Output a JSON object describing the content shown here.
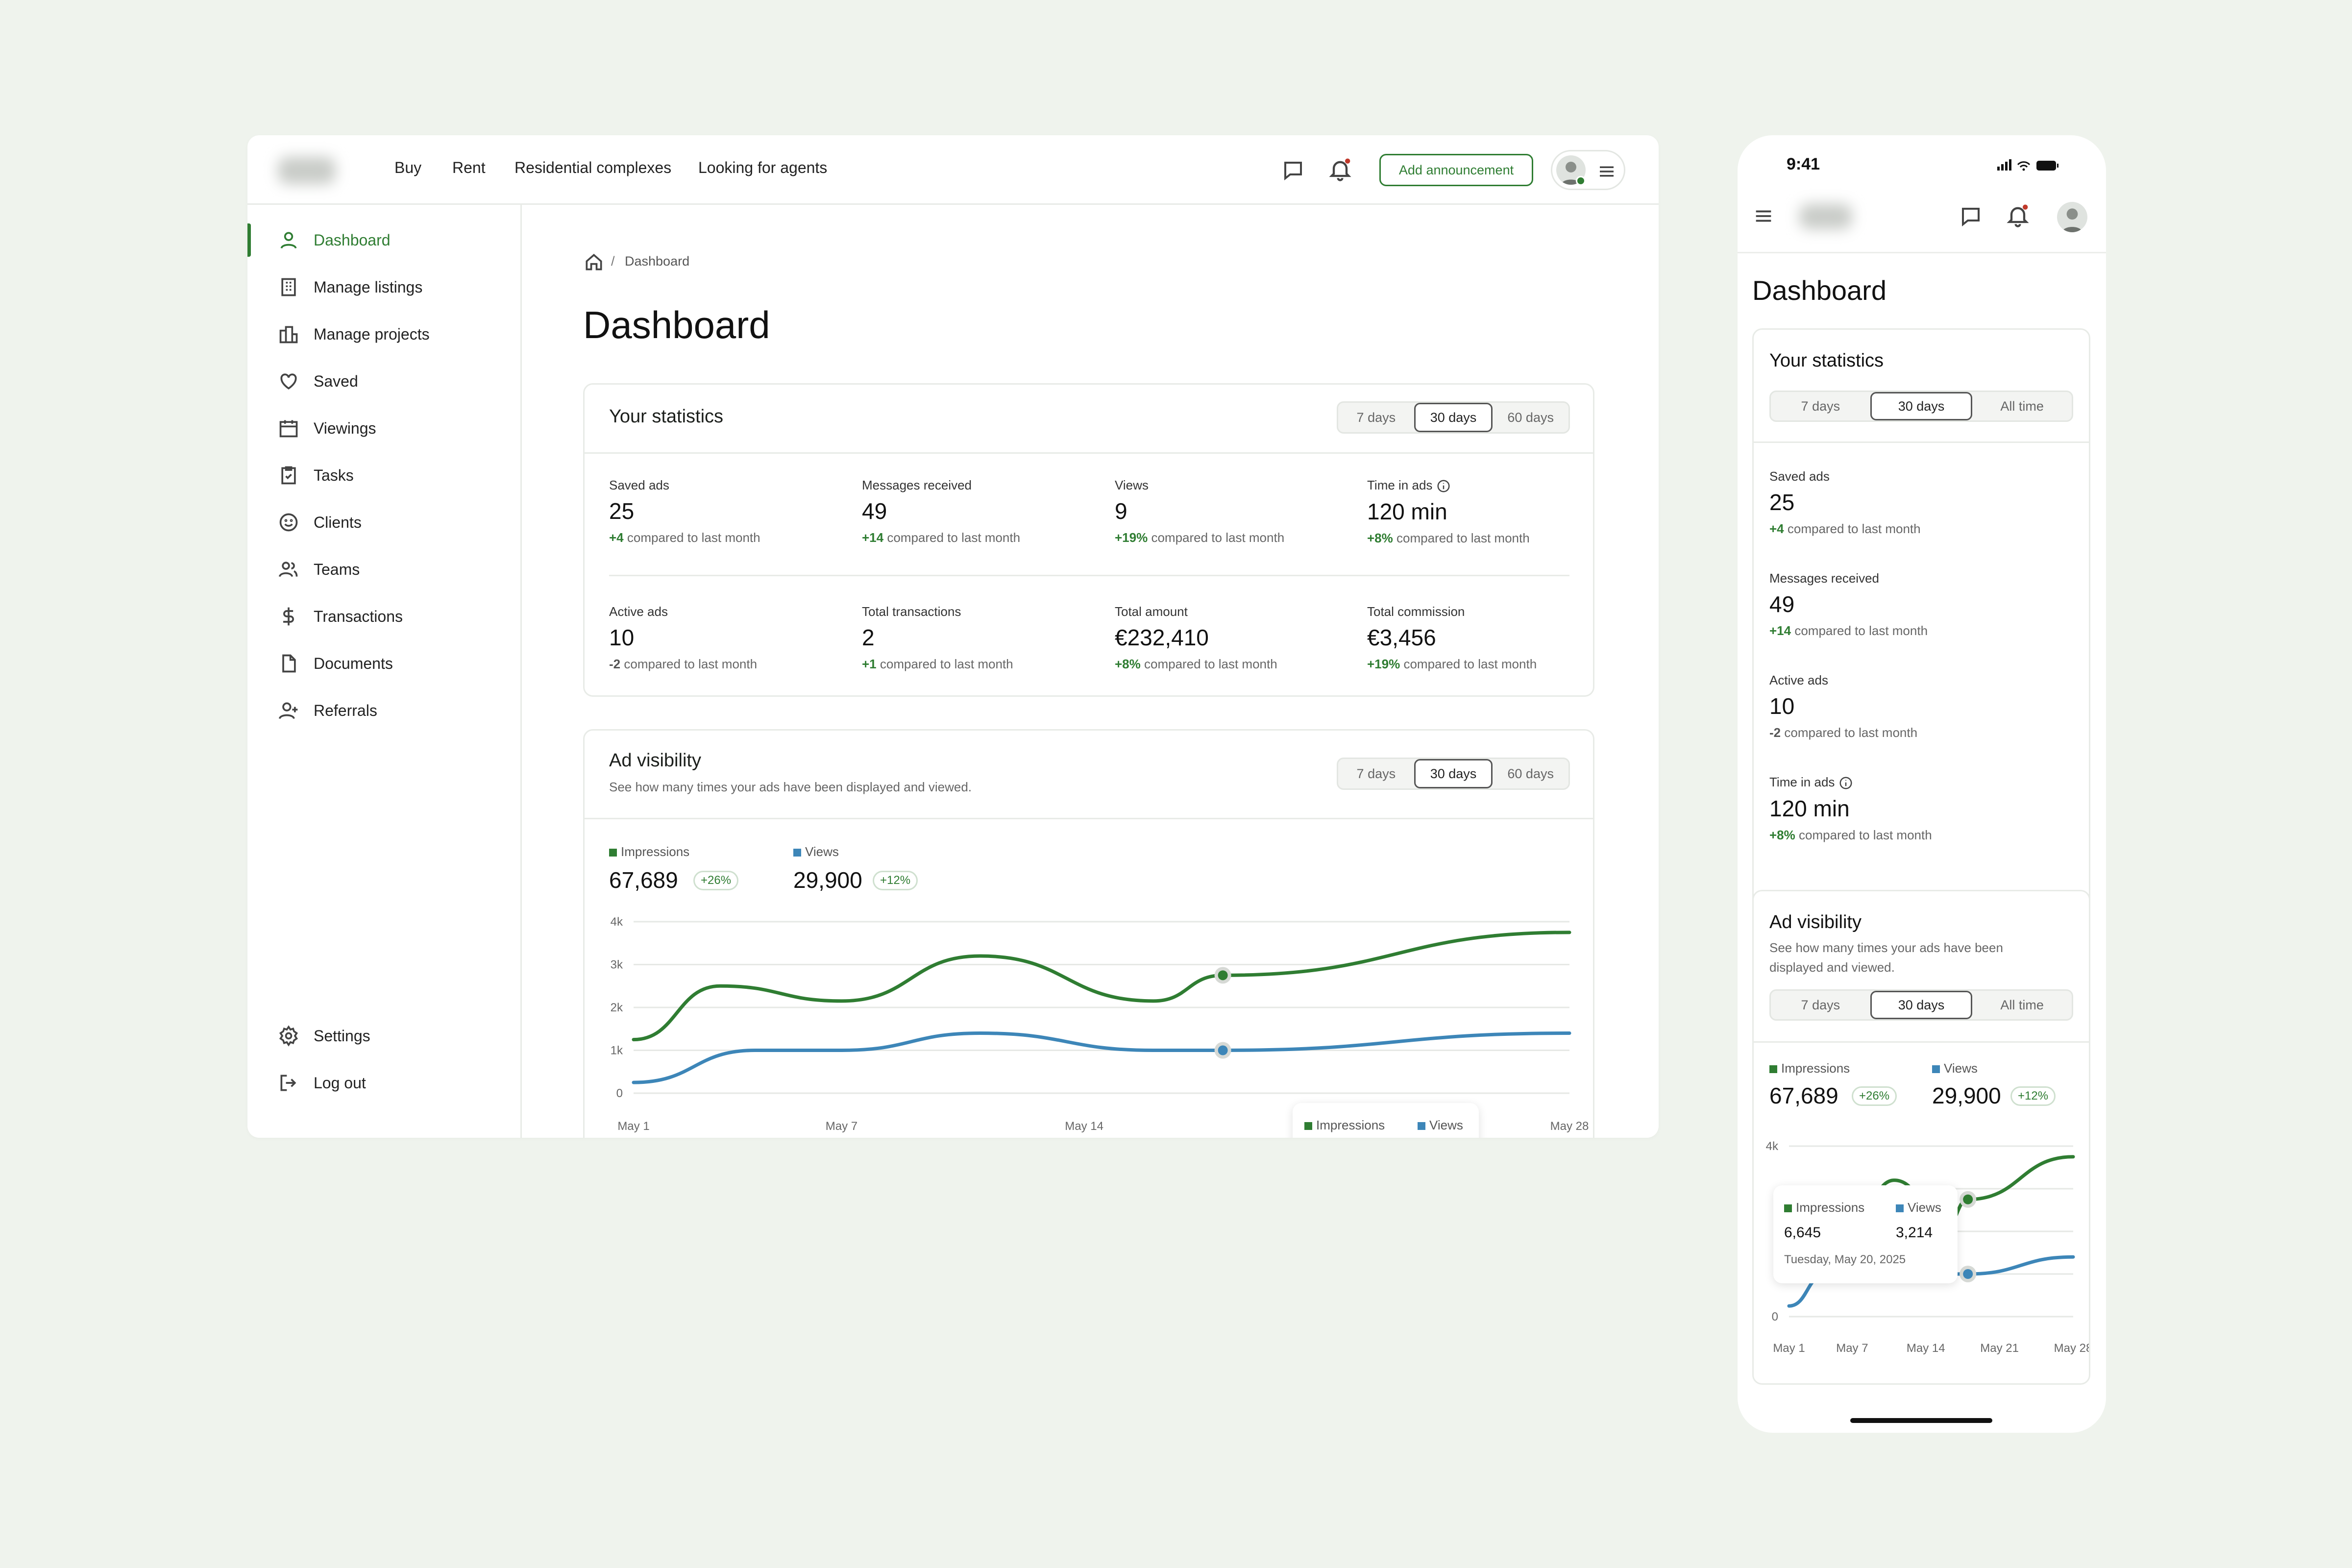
{
  "desktop": {
    "nav": [
      "Buy",
      "Rent",
      "Residential complexes",
      "Looking for agents"
    ],
    "add_button": "Add announcement",
    "sidebar": {
      "items": [
        "Dashboard",
        "Manage listings",
        "Manage projects",
        "Saved",
        "Viewings",
        "Tasks",
        "Clients",
        "Teams",
        "Transactions",
        "Documents",
        "Referrals"
      ],
      "active": "Dashboard",
      "bottom": [
        "Settings",
        "Log out"
      ]
    },
    "breadcrumb": "Dashboard",
    "page_title": "Dashboard",
    "stats": {
      "title": "Your statistics",
      "periods": [
        "7 days",
        "30 days",
        "60 days"
      ],
      "selected": "30 days",
      "items": [
        {
          "label": "Saved ads",
          "value": "25",
          "delta": "+4",
          "suffix": "compared to last month"
        },
        {
          "label": "Messages received",
          "value": "49",
          "delta": "+14",
          "suffix": "compared to last month"
        },
        {
          "label": "Views",
          "value": "9",
          "delta": "+19%",
          "suffix": "compared to last month"
        },
        {
          "label": "Time in ads",
          "value": "120 min",
          "delta": "+8%",
          "suffix": "compared to last month"
        },
        {
          "label": "Active ads",
          "value": "10",
          "delta": "-2",
          "suffix": "compared to last month"
        },
        {
          "label": "Total transactions",
          "value": "2",
          "delta": "+1",
          "suffix": "compared to last month"
        },
        {
          "label": "Total amount",
          "value": "€232,410",
          "delta": "+8%",
          "suffix": "compared to last month"
        },
        {
          "label": "Total commission",
          "value": "€3,456",
          "delta": "+19%",
          "suffix": "compared to last month"
        }
      ]
    },
    "visibility": {
      "title": "Ad visibility",
      "subtitle": "See how many times your ads have been displayed and viewed.",
      "periods": [
        "7 days",
        "30 days",
        "60 days"
      ],
      "selected": "30 days"
    }
  },
  "phone": {
    "time": "9:41",
    "page_title": "Dashboard",
    "stats": {
      "title": "Your statistics",
      "periods": [
        "7 days",
        "30 days",
        "All time"
      ],
      "selected": "30 days",
      "items": [
        {
          "label": "Saved ads",
          "value": "25",
          "delta": "+4",
          "suffix": "compared to last month"
        },
        {
          "label": "Messages received",
          "value": "49",
          "delta": "+14",
          "suffix": "compared to last month"
        },
        {
          "label": "Active ads",
          "value": "10",
          "delta": "-2",
          "suffix": "compared to last month"
        },
        {
          "label": "Time in ads",
          "value": "120 min",
          "delta": "+8%",
          "suffix": "compared to last month"
        }
      ]
    },
    "visibility": {
      "title": "Ad visibility",
      "subtitle_line1": "See how many times your ads have been",
      "subtitle_line2": "displayed and viewed.",
      "periods": [
        "7 days",
        "30 days",
        "All time"
      ],
      "selected": "30 days"
    }
  },
  "chart_data": {
    "type": "line",
    "x": [
      "May 1",
      "May 7",
      "May 14",
      "May 21",
      "May 28"
    ],
    "x_days": [
      1,
      3,
      4,
      6,
      8,
      10,
      11,
      14,
      18,
      20,
      21,
      28
    ],
    "series": [
      {
        "name": "Impressions",
        "total": "67,689",
        "badge": "+26%",
        "color": "#2f7d32",
        "points": [
          [
            1,
            1250
          ],
          [
            3.5,
            2500
          ],
          [
            7,
            2150
          ],
          [
            11,
            3200
          ],
          [
            16,
            2150
          ],
          [
            18,
            2750
          ],
          [
            28,
            3750
          ]
        ]
      },
      {
        "name": "Views",
        "total": "29,900",
        "badge": "+12%",
        "color": "#3d86b8",
        "points": [
          [
            1,
            250
          ],
          [
            4.5,
            1000
          ],
          [
            7,
            1000
          ],
          [
            11,
            1400
          ],
          [
            16,
            1000
          ],
          [
            18,
            1000
          ],
          [
            28,
            1400
          ]
        ]
      }
    ],
    "y_ticks": [
      "0",
      "1k",
      "2k",
      "3k",
      "4k"
    ],
    "ylim": [
      0,
      4000
    ],
    "tooltip": {
      "impressions": "6,645",
      "views": "3,214",
      "date": "Tuesday, May 20, 2025",
      "legend_impressions": "Impressions",
      "legend_views": "Views"
    },
    "phone_x": [
      "May 1",
      "May 7",
      "May 14",
      "May 21",
      "May 28"
    ],
    "phone_y_ticks": [
      "0",
      "4k"
    ]
  }
}
